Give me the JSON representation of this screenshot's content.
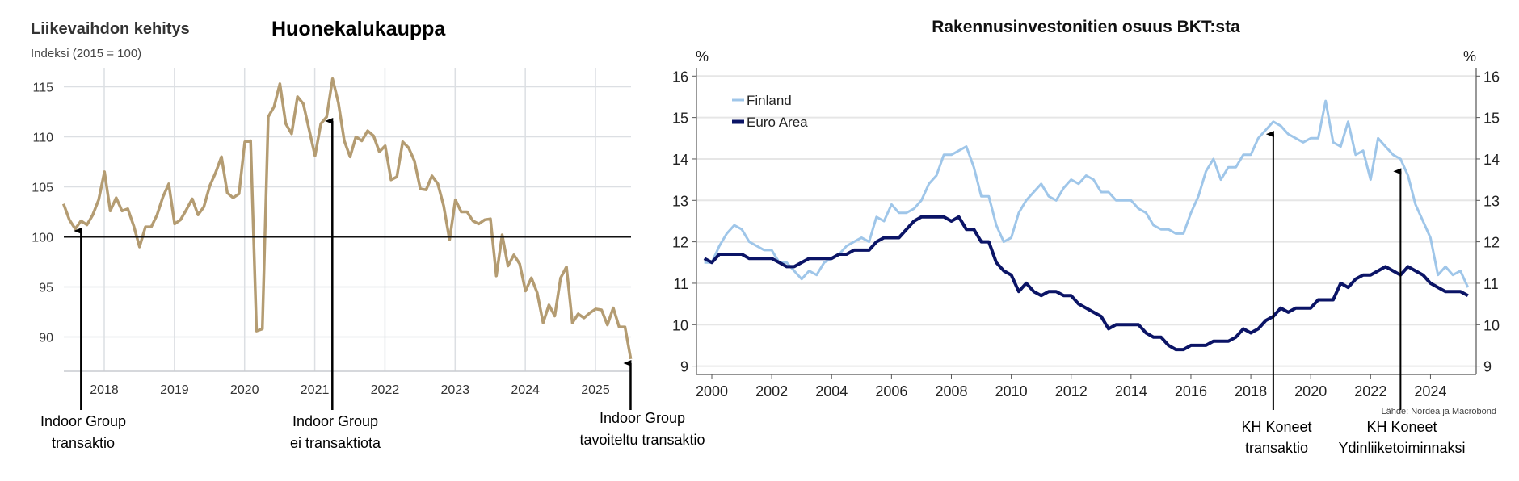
{
  "chart_data": [
    {
      "type": "line",
      "title": "Liikevaihdon kehitys",
      "heading": "Huonekalukauppa",
      "subtitle": "Indeksi (2015 = 100)",
      "frequency": "monthly",
      "start": 2017.42,
      "ylim": [
        86.5,
        116.5
      ],
      "yticks": [
        115,
        110,
        105,
        100,
        95,
        90
      ],
      "xticks": [
        2018,
        2019,
        2020,
        2021,
        2022,
        2023,
        2024,
        2025
      ],
      "reference_line": 100,
      "grid": true,
      "color": "#b49c72",
      "values": [
        103.3,
        101.7,
        100.8,
        101.6,
        101.2,
        102.2,
        103.7,
        106.5,
        102.6,
        103.9,
        102.6,
        102.8,
        101.1,
        99.0,
        101.0,
        101.0,
        102.2,
        104.0,
        105.3,
        101.3,
        101.7,
        102.7,
        103.8,
        102.2,
        103.0,
        105.1,
        106.4,
        108.0,
        104.4,
        103.9,
        104.3,
        109.5,
        109.6,
        90.6,
        90.8,
        112.0,
        113.0,
        115.3,
        111.3,
        110.3,
        114.0,
        113.3,
        110.7,
        108.1,
        111.3,
        112.0,
        115.8,
        113.4,
        109.6,
        108.0,
        110.0,
        109.6,
        110.6,
        110.1,
        108.5,
        109.1,
        105.7,
        106.0,
        109.5,
        108.9,
        107.6,
        104.8,
        104.7,
        106.1,
        105.3,
        103.1,
        99.7,
        103.7,
        102.5,
        102.5,
        101.6,
        101.3,
        101.7,
        101.8,
        96.1,
        100.2,
        97.1,
        98.2,
        97.3,
        94.6,
        95.9,
        94.4,
        91.4,
        93.2,
        92.1,
        95.9,
        97.0,
        91.4,
        92.3,
        91.9,
        92.4,
        92.8,
        92.7,
        91.2,
        92.9,
        91.0,
        91.0,
        87.8
      ],
      "annotations": [
        {
          "at": 2017.67,
          "lines": [
            "Indoor Group",
            "transaktio"
          ]
        },
        {
          "at": 2021.25,
          "lines": [
            "Indoor Group",
            "ei transaktiota"
          ]
        },
        {
          "at": 2025.5,
          "lines": [
            "Indoor Group",
            "tavoiteltu transaktio"
          ]
        }
      ]
    },
    {
      "type": "line",
      "title": "Rakennusinvestonitien osuus BKT:sta",
      "ylabel_left": "%",
      "ylabel_right": "%",
      "frequency": "quarterly",
      "start": 1999.75,
      "ylim": [
        8.75,
        16.25
      ],
      "yticks": [
        16,
        15,
        14,
        13,
        12,
        11,
        10,
        9
      ],
      "xticks": [
        2000,
        2002,
        2004,
        2006,
        2008,
        2010,
        2012,
        2014,
        2016,
        2018,
        2020,
        2022,
        2024
      ],
      "grid": true,
      "legend_position": "top-left",
      "source": "Lähde: Nordea ja Macrobond",
      "series": [
        {
          "name": "Finland",
          "color": "#9fc6e9",
          "values": [
            11.5,
            11.5,
            11.9,
            12.2,
            12.4,
            12.3,
            12.0,
            11.9,
            11.8,
            11.8,
            11.5,
            11.5,
            11.3,
            11.1,
            11.3,
            11.2,
            11.5,
            11.6,
            11.7,
            11.9,
            12.0,
            12.1,
            12.0,
            12.6,
            12.5,
            12.9,
            12.7,
            12.7,
            12.8,
            13.0,
            13.4,
            13.6,
            14.1,
            14.1,
            14.2,
            14.3,
            13.8,
            13.1,
            13.1,
            12.4,
            12.0,
            12.1,
            12.7,
            13.0,
            13.2,
            13.4,
            13.1,
            13.0,
            13.3,
            13.5,
            13.4,
            13.6,
            13.5,
            13.2,
            13.2,
            13.0,
            13.0,
            13.0,
            12.8,
            12.7,
            12.4,
            12.3,
            12.3,
            12.2,
            12.2,
            12.7,
            13.1,
            13.7,
            14.0,
            13.5,
            13.8,
            13.8,
            14.1,
            14.1,
            14.5,
            14.7,
            14.9,
            14.8,
            14.6,
            14.5,
            14.4,
            14.5,
            14.5,
            15.4,
            14.4,
            14.3,
            14.9,
            14.1,
            14.2,
            13.5,
            14.5,
            14.3,
            14.1,
            14.0,
            13.6,
            12.9,
            12.5,
            12.1,
            11.2,
            11.4,
            11.2,
            11.3,
            10.9
          ]
        },
        {
          "name": "Euro Area",
          "color": "#0b1466",
          "values": [
            11.6,
            11.5,
            11.7,
            11.7,
            11.7,
            11.7,
            11.6,
            11.6,
            11.6,
            11.6,
            11.5,
            11.4,
            11.4,
            11.5,
            11.6,
            11.6,
            11.6,
            11.6,
            11.7,
            11.7,
            11.8,
            11.8,
            11.8,
            12.0,
            12.1,
            12.1,
            12.1,
            12.3,
            12.5,
            12.6,
            12.6,
            12.6,
            12.6,
            12.5,
            12.6,
            12.3,
            12.3,
            12.0,
            12.0,
            11.5,
            11.3,
            11.2,
            10.8,
            11.0,
            10.8,
            10.7,
            10.8,
            10.8,
            10.7,
            10.7,
            10.5,
            10.4,
            10.3,
            10.2,
            9.9,
            10.0,
            10.0,
            10.0,
            10.0,
            9.8,
            9.7,
            9.7,
            9.5,
            9.4,
            9.4,
            9.5,
            9.5,
            9.5,
            9.6,
            9.6,
            9.6,
            9.7,
            9.9,
            9.8,
            9.9,
            10.1,
            10.2,
            10.4,
            10.3,
            10.4,
            10.4,
            10.4,
            10.6,
            10.6,
            10.6,
            11.0,
            10.9,
            11.1,
            11.2,
            11.2,
            11.3,
            11.4,
            11.3,
            11.2,
            11.4,
            11.3,
            11.2,
            11.0,
            10.9,
            10.8,
            10.8,
            10.8,
            10.7
          ]
        }
      ],
      "annotations": [
        {
          "at": 2018.75,
          "tip": 14.6,
          "lines": [
            "KH Koneet",
            "transaktio"
          ]
        },
        {
          "at": 2023.0,
          "tip": 13.7,
          "lines": [
            "KH Koneet",
            "Ydinliiketoiminnaksi"
          ]
        }
      ]
    }
  ]
}
